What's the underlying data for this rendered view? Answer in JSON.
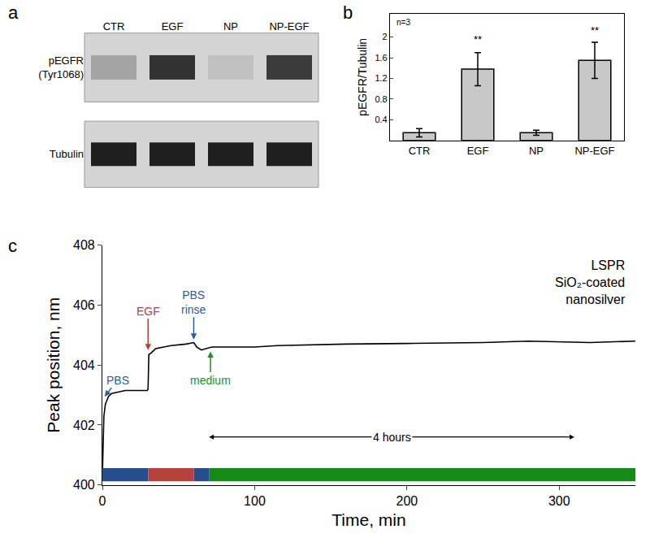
{
  "chart_data": [
    {
      "type": "blot",
      "label": "a",
      "lanes": [
        "CTR",
        "EGF",
        "NP",
        "NP-EGF"
      ],
      "rows": [
        {
          "label": [
            "pEGFR",
            "(Tyr1068)"
          ],
          "intensity": [
            0.25,
            0.85,
            0.1,
            0.8
          ]
        },
        {
          "label": [
            "Tubulin"
          ],
          "intensity": [
            0.95,
            0.95,
            0.95,
            0.95
          ]
        }
      ],
      "zlim": [
        0,
        1
      ]
    },
    {
      "type": "bar",
      "label": "b",
      "categories": [
        "CTR",
        "EGF",
        "NP",
        "NP-EGF"
      ],
      "values": [
        0.15,
        1.38,
        0.15,
        1.55
      ],
      "errors": [
        0.08,
        0.32,
        0.05,
        0.35
      ],
      "color": "#c8c8c8",
      "ylabel": "pEGFR/Tubulin",
      "ylim": [
        0,
        2.45
      ],
      "yticks": [
        0.4,
        0.8,
        1.2,
        1.6,
        2
      ],
      "grid": false,
      "note": "n=3",
      "annotations": [
        {
          "text": "**",
          "x": "EGF",
          "y": 1.8
        },
        {
          "text": "**",
          "x": "NP-EGF",
          "y": 1.98
        }
      ]
    },
    {
      "type": "line",
      "label": "c",
      "x": [
        0,
        0.5,
        1,
        2,
        4,
        6,
        10,
        15,
        29.5,
        30,
        30.5,
        32,
        35,
        40,
        45,
        55,
        60,
        62,
        65,
        68,
        72,
        80,
        100,
        115,
        160,
        200,
        250,
        280,
        300,
        320,
        350
      ],
      "values": [
        400.3,
        401.5,
        402.3,
        402.7,
        402.95,
        403.05,
        403.1,
        403.15,
        403.15,
        403.2,
        404.35,
        404.4,
        404.55,
        404.6,
        404.65,
        404.7,
        404.75,
        404.6,
        404.5,
        404.55,
        404.6,
        404.6,
        404.6,
        404.65,
        404.7,
        404.72,
        404.75,
        404.8,
        404.78,
        404.75,
        404.8
      ],
      "color": "#000000",
      "xlabel": "Time, min",
      "ylabel": "Peak position, nm",
      "xlim": [
        0,
        350
      ],
      "xticks": [
        0,
        100,
        200,
        300
      ],
      "ylim": [
        400,
        408
      ],
      "yticks": [
        400,
        402,
        404,
        406,
        408
      ],
      "grid": false,
      "title_lines": [
        "LSPR",
        "SiO₂-coated",
        "nanosilver"
      ],
      "annotations": [
        {
          "text": [
            "PBS"
          ],
          "x": 1.5,
          "y": 402.95,
          "ax": 10,
          "ay": 403.5,
          "color": "#2e5d9a"
        },
        {
          "text": [
            "EGF"
          ],
          "x": 30,
          "y": 404.5,
          "ax": 30,
          "ay": 405.8,
          "color": "#b0433a"
        },
        {
          "text": [
            "PBS",
            "rinse"
          ],
          "x": 60,
          "y": 404.85,
          "ax": 60,
          "ay": 406.1,
          "color": "#2e5d9a"
        },
        {
          "text": [
            "medium"
          ],
          "x": 71,
          "y": 404.45,
          "ax": 71,
          "ay": 403.5,
          "color": "#1f8f1f"
        }
      ],
      "phases": [
        {
          "start": 0,
          "end": 30,
          "color": "#264d8c"
        },
        {
          "start": 30,
          "end": 60,
          "color": "#b5413a"
        },
        {
          "start": 60,
          "end": 70,
          "color": "#264d8c"
        },
        {
          "start": 70,
          "end": 350,
          "color": "#168a16"
        }
      ],
      "span": {
        "text": "4 hours",
        "start": 70,
        "end": 310,
        "y": 401.6
      }
    }
  ]
}
